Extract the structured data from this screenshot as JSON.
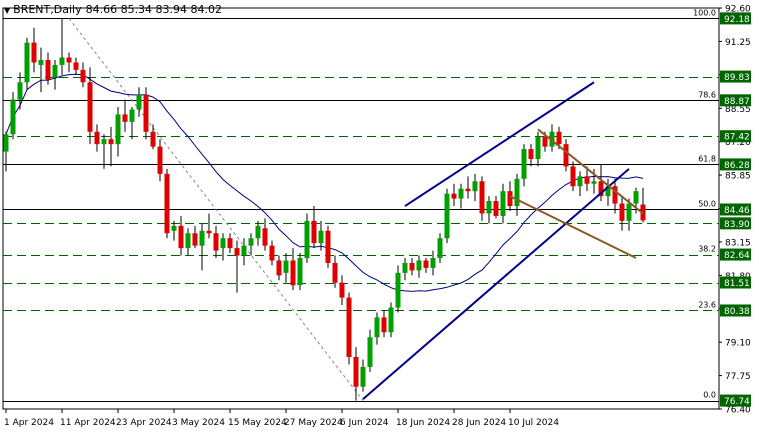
{
  "header": {
    "symbol_timeframe": "BRENT,Daily",
    "ohlc": "84.66 85.34 83.94 84.02"
  },
  "chart_data": {
    "type": "candlestick",
    "symbol": "BRENT",
    "timeframe": "Daily",
    "ylim": [
      76.4,
      92.6
    ],
    "price_ticks": [
      "92.60",
      "91.25",
      "89.90",
      "88.55",
      "87.20",
      "85.85",
      "84.50",
      "83.15",
      "81.80",
      "80.45",
      "79.10",
      "77.75",
      "76.40"
    ],
    "date_ticks": [
      "1 Apr 2024",
      "11 Apr 2024",
      "23 Apr 2024",
      "3 May 2024",
      "15 May 2024",
      "27 May 2024",
      "6 Jun 2024",
      "18 Jun 2024",
      "28 Jun 2024",
      "10 Jul 2024"
    ],
    "date_tick_index": [
      0,
      8,
      16,
      24,
      32,
      40,
      48,
      56,
      64,
      72
    ],
    "candles": [
      {
        "o": 86.8,
        "h": 87.6,
        "l": 86.0,
        "c": 87.5
      },
      {
        "o": 87.5,
        "h": 89.2,
        "l": 87.3,
        "c": 88.9
      },
      {
        "o": 88.9,
        "h": 90.0,
        "l": 88.5,
        "c": 89.6
      },
      {
        "o": 89.6,
        "h": 91.4,
        "l": 89.3,
        "c": 91.2
      },
      {
        "o": 91.2,
        "h": 91.8,
        "l": 90.0,
        "c": 90.4
      },
      {
        "o": 90.3,
        "h": 91.0,
        "l": 89.2,
        "c": 90.5
      },
      {
        "o": 90.5,
        "h": 90.8,
        "l": 89.5,
        "c": 89.7
      },
      {
        "o": 89.8,
        "h": 90.5,
        "l": 89.3,
        "c": 90.3
      },
      {
        "o": 90.3,
        "h": 92.18,
        "l": 89.9,
        "c": 90.6
      },
      {
        "o": 90.6,
        "h": 90.8,
        "l": 90.0,
        "c": 90.4
      },
      {
        "o": 90.4,
        "h": 90.6,
        "l": 89.9,
        "c": 90.1
      },
      {
        "o": 90.1,
        "h": 90.4,
        "l": 89.4,
        "c": 89.6
      },
      {
        "o": 89.6,
        "h": 90.2,
        "l": 87.1,
        "c": 87.6
      },
      {
        "o": 87.6,
        "h": 87.9,
        "l": 86.8,
        "c": 87.1
      },
      {
        "o": 87.1,
        "h": 87.5,
        "l": 86.1,
        "c": 87.3
      },
      {
        "o": 87.3,
        "h": 87.8,
        "l": 86.2,
        "c": 87.1
      },
      {
        "o": 87.1,
        "h": 88.6,
        "l": 86.6,
        "c": 88.3
      },
      {
        "o": 88.3,
        "h": 88.9,
        "l": 87.6,
        "c": 88.0
      },
      {
        "o": 88.0,
        "h": 88.6,
        "l": 87.3,
        "c": 88.5
      },
      {
        "o": 88.5,
        "h": 89.4,
        "l": 88.2,
        "c": 89.1
      },
      {
        "o": 89.1,
        "h": 89.4,
        "l": 87.3,
        "c": 87.6
      },
      {
        "o": 87.6,
        "h": 87.9,
        "l": 86.9,
        "c": 87.0
      },
      {
        "o": 87.0,
        "h": 87.3,
        "l": 85.6,
        "c": 85.9
      },
      {
        "o": 85.9,
        "h": 86.1,
        "l": 83.3,
        "c": 83.5
      },
      {
        "o": 83.6,
        "h": 84.0,
        "l": 83.2,
        "c": 83.8
      },
      {
        "o": 83.8,
        "h": 84.2,
        "l": 82.6,
        "c": 82.9
      },
      {
        "o": 82.9,
        "h": 83.7,
        "l": 82.6,
        "c": 83.5
      },
      {
        "o": 83.5,
        "h": 83.8,
        "l": 82.9,
        "c": 83.0
      },
      {
        "o": 83.0,
        "h": 83.9,
        "l": 82.0,
        "c": 83.6
      },
      {
        "o": 83.6,
        "h": 84.3,
        "l": 83.3,
        "c": 83.5
      },
      {
        "o": 83.5,
        "h": 83.8,
        "l": 82.5,
        "c": 82.8
      },
      {
        "o": 82.9,
        "h": 83.5,
        "l": 82.4,
        "c": 83.3
      },
      {
        "o": 83.3,
        "h": 83.5,
        "l": 82.7,
        "c": 82.9
      },
      {
        "o": 82.9,
        "h": 83.2,
        "l": 81.1,
        "c": 82.6
      },
      {
        "o": 82.6,
        "h": 83.3,
        "l": 82.2,
        "c": 83.0
      },
      {
        "o": 83.0,
        "h": 83.5,
        "l": 82.6,
        "c": 83.3
      },
      {
        "o": 83.3,
        "h": 84.0,
        "l": 83.0,
        "c": 83.8
      },
      {
        "o": 83.7,
        "h": 84.1,
        "l": 82.8,
        "c": 83.0
      },
      {
        "o": 83.0,
        "h": 83.2,
        "l": 82.2,
        "c": 82.4
      },
      {
        "o": 82.4,
        "h": 82.6,
        "l": 81.6,
        "c": 81.8
      },
      {
        "o": 81.9,
        "h": 82.7,
        "l": 81.5,
        "c": 82.4
      },
      {
        "o": 82.4,
        "h": 82.9,
        "l": 81.2,
        "c": 81.4
      },
      {
        "o": 81.4,
        "h": 82.7,
        "l": 81.2,
        "c": 82.5
      },
      {
        "o": 82.5,
        "h": 84.3,
        "l": 82.3,
        "c": 84.0
      },
      {
        "o": 84.0,
        "h": 84.6,
        "l": 82.9,
        "c": 83.1
      },
      {
        "o": 83.1,
        "h": 84.0,
        "l": 82.8,
        "c": 83.6
      },
      {
        "o": 83.6,
        "h": 83.8,
        "l": 82.1,
        "c": 82.3
      },
      {
        "o": 82.3,
        "h": 82.6,
        "l": 81.3,
        "c": 81.5
      },
      {
        "o": 81.5,
        "h": 81.8,
        "l": 80.6,
        "c": 80.9
      },
      {
        "o": 80.9,
        "h": 81.1,
        "l": 78.2,
        "c": 78.5
      },
      {
        "o": 78.5,
        "h": 78.9,
        "l": 76.74,
        "c": 77.3
      },
      {
        "o": 77.3,
        "h": 78.4,
        "l": 77.1,
        "c": 78.1
      },
      {
        "o": 78.1,
        "h": 79.6,
        "l": 77.9,
        "c": 79.3
      },
      {
        "o": 79.3,
        "h": 80.3,
        "l": 79.0,
        "c": 80.1
      },
      {
        "o": 80.1,
        "h": 80.4,
        "l": 79.3,
        "c": 79.5
      },
      {
        "o": 79.5,
        "h": 80.7,
        "l": 79.3,
        "c": 80.5
      },
      {
        "o": 80.5,
        "h": 82.2,
        "l": 80.3,
        "c": 81.9
      },
      {
        "o": 81.9,
        "h": 82.5,
        "l": 81.6,
        "c": 82.3
      },
      {
        "o": 82.3,
        "h": 82.5,
        "l": 81.8,
        "c": 82.0
      },
      {
        "o": 82.0,
        "h": 82.6,
        "l": 81.7,
        "c": 82.4
      },
      {
        "o": 82.4,
        "h": 82.5,
        "l": 81.9,
        "c": 82.1
      },
      {
        "o": 82.1,
        "h": 82.8,
        "l": 81.8,
        "c": 82.5
      },
      {
        "o": 82.5,
        "h": 83.5,
        "l": 82.3,
        "c": 83.3
      },
      {
        "o": 83.3,
        "h": 85.3,
        "l": 83.1,
        "c": 85.1
      },
      {
        "o": 85.1,
        "h": 85.5,
        "l": 84.6,
        "c": 84.9
      },
      {
        "o": 84.9,
        "h": 85.5,
        "l": 84.5,
        "c": 85.3
      },
      {
        "o": 85.3,
        "h": 85.8,
        "l": 84.9,
        "c": 85.2
      },
      {
        "o": 85.2,
        "h": 85.9,
        "l": 84.8,
        "c": 85.6
      },
      {
        "o": 85.6,
        "h": 85.8,
        "l": 84.0,
        "c": 84.3
      },
      {
        "o": 84.3,
        "h": 85.0,
        "l": 83.9,
        "c": 84.8
      },
      {
        "o": 84.8,
        "h": 85.0,
        "l": 84.1,
        "c": 84.2
      },
      {
        "o": 84.2,
        "h": 85.5,
        "l": 83.9,
        "c": 85.2
      },
      {
        "o": 85.2,
        "h": 85.6,
        "l": 84.4,
        "c": 84.6
      },
      {
        "o": 84.6,
        "h": 85.9,
        "l": 84.2,
        "c": 85.7
      },
      {
        "o": 85.7,
        "h": 87.1,
        "l": 85.4,
        "c": 86.9
      },
      {
        "o": 86.9,
        "h": 87.1,
        "l": 86.2,
        "c": 86.5
      },
      {
        "o": 86.5,
        "h": 87.6,
        "l": 86.2,
        "c": 87.4
      },
      {
        "o": 87.4,
        "h": 87.6,
        "l": 86.8,
        "c": 87.0
      },
      {
        "o": 87.0,
        "h": 87.9,
        "l": 86.8,
        "c": 87.6
      },
      {
        "o": 87.6,
        "h": 87.8,
        "l": 86.9,
        "c": 87.1
      },
      {
        "o": 87.1,
        "h": 87.3,
        "l": 86.0,
        "c": 86.2
      },
      {
        "o": 86.2,
        "h": 86.4,
        "l": 85.2,
        "c": 85.4
      },
      {
        "o": 85.4,
        "h": 86.0,
        "l": 85.0,
        "c": 85.8
      },
      {
        "o": 85.8,
        "h": 86.2,
        "l": 85.2,
        "c": 85.5
      },
      {
        "o": 85.5,
        "h": 86.1,
        "l": 85.1,
        "c": 85.6
      },
      {
        "o": 85.6,
        "h": 86.3,
        "l": 84.8,
        "c": 85.0
      },
      {
        "o": 85.0,
        "h": 85.7,
        "l": 84.6,
        "c": 85.4
      },
      {
        "o": 85.4,
        "h": 85.7,
        "l": 84.3,
        "c": 84.7
      },
      {
        "o": 84.7,
        "h": 85.0,
        "l": 83.6,
        "c": 84.0
      },
      {
        "o": 84.0,
        "h": 84.9,
        "l": 83.6,
        "c": 84.7
      },
      {
        "o": 84.7,
        "h": 85.34,
        "l": 84.3,
        "c": 85.2
      },
      {
        "o": 84.66,
        "h": 85.34,
        "l": 83.94,
        "c": 84.02
      }
    ],
    "ma_period": 20,
    "fibonacci": {
      "levels": [
        {
          "ratio": "100.0",
          "price": 92.18
        },
        {
          "ratio": "78.6",
          "price": 88.87
        },
        {
          "ratio": "61.8",
          "price": 86.28
        },
        {
          "ratio": "50.0",
          "price": 84.46
        },
        {
          "ratio": "38.2",
          "price": 82.64
        },
        {
          "ratio": "23.6",
          "price": 80.38
        },
        {
          "ratio": "0.0",
          "price": 76.74
        }
      ]
    },
    "horizontal_levels": [
      {
        "price": 92.18,
        "label": "92.18",
        "style": "solid"
      },
      {
        "price": 89.83,
        "label": "89.83",
        "style": "dashed"
      },
      {
        "price": 88.87,
        "label": "88.87",
        "style": "solid"
      },
      {
        "price": 87.42,
        "label": "87.42",
        "style": "dashed"
      },
      {
        "price": 86.28,
        "label": "86.28",
        "style": "solid"
      },
      {
        "price": 84.46,
        "label": "84.46",
        "style": "solid"
      },
      {
        "price": 83.9,
        "label": "83.90",
        "style": "dashed"
      },
      {
        "price": 82.64,
        "label": "82.64",
        "style": "dashed"
      },
      {
        "price": 81.51,
        "label": "81.51",
        "style": "dashed"
      },
      {
        "price": 80.38,
        "label": "80.38",
        "style": "dashed"
      },
      {
        "price": 76.74,
        "label": "76.74",
        "style": "solid"
      }
    ],
    "trendlines": [
      {
        "name": "uptrend-support",
        "color": "#00008b",
        "from": {
          "i": 51,
          "p": 76.8
        },
        "to": {
          "i": 89,
          "p": 86.1
        }
      },
      {
        "name": "channel-top",
        "color": "#00008b",
        "from": {
          "i": 57,
          "p": 84.6
        },
        "to": {
          "i": 84,
          "p": 89.6
        }
      },
      {
        "name": "fall-channel-top",
        "color": "#8b5a2b",
        "from": {
          "i": 76,
          "p": 87.7
        },
        "to": {
          "i": 91,
          "p": 84.3
        }
      },
      {
        "name": "fall-channel-bottom",
        "color": "#8b5a2b",
        "from": {
          "i": 72,
          "p": 85.0
        },
        "to": {
          "i": 90,
          "p": 82.5
        }
      }
    ],
    "fib_anchor": {
      "from": {
        "i": 9,
        "p": 92.18
      },
      "to": {
        "i": 51,
        "p": 76.74
      }
    },
    "colors": {
      "bull": "#00a000",
      "bear": "#e00000",
      "wick": "#000000",
      "ma": "#000080",
      "level_line": "#000000",
      "dashed_level": "#006400",
      "price_label_bg": "#006400",
      "price_label_text": "#ffffff",
      "axis": "#000000",
      "grid_text": "#000000",
      "fib_anchor": "#888888"
    }
  }
}
